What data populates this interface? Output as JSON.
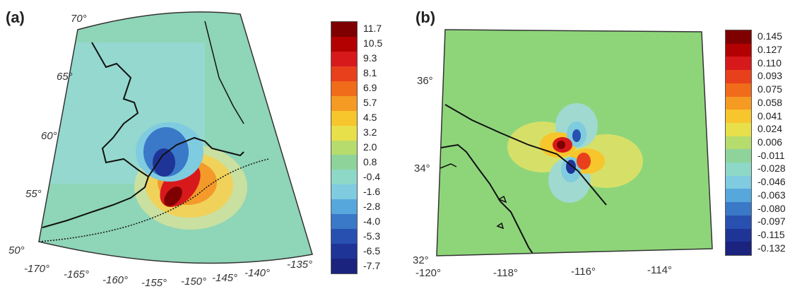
{
  "panels": [
    {
      "label": "(a)",
      "colorbar": {
        "ticks": [
          "11.7",
          "10.5",
          "9.3",
          "8.1",
          "6.9",
          "5.7",
          "4.5",
          "3.2",
          "2.0",
          "0.8",
          "-0.4",
          "-1.6",
          "-2.8",
          "-4.0",
          "-5.3",
          "-6.5",
          "-7.7"
        ]
      },
      "lat_labels": [
        "70°",
        "65°",
        "60°",
        "55°",
        "50°"
      ],
      "lon_labels": [
        "-170°",
        "-165°",
        "-160°",
        "-155°",
        "-150°",
        "-145°",
        "-140°",
        "-135°"
      ]
    },
    {
      "label": "(b)",
      "colorbar": {
        "ticks": [
          "0.145",
          "0.127",
          "0.110",
          "0.093",
          "0.075",
          "0.058",
          "0.041",
          "0.024",
          "0.006",
          "-0.011",
          "-0.028",
          "-0.046",
          "-0.063",
          "-0.080",
          "-0.097",
          "-0.115",
          "-0.132"
        ]
      },
      "lat_labels": [
        "36°",
        "34°",
        "32°"
      ],
      "lon_labels": [
        "-120°",
        "-118°",
        "-116°",
        "-114°"
      ]
    }
  ],
  "colors": {
    "scale": [
      "#7f0000",
      "#b30000",
      "#d7191c",
      "#e8401c",
      "#f06b1a",
      "#f59a22",
      "#f7c52c",
      "#e8e04a",
      "#b6dc6e",
      "#8ed39a",
      "#8ed8c8",
      "#7fcbe0",
      "#56a8dc",
      "#3a78c8",
      "#2850b0",
      "#1f3497",
      "#1a237e"
    ],
    "background_a": "#8fd5b8",
    "background_b": "#8ed57a"
  }
}
